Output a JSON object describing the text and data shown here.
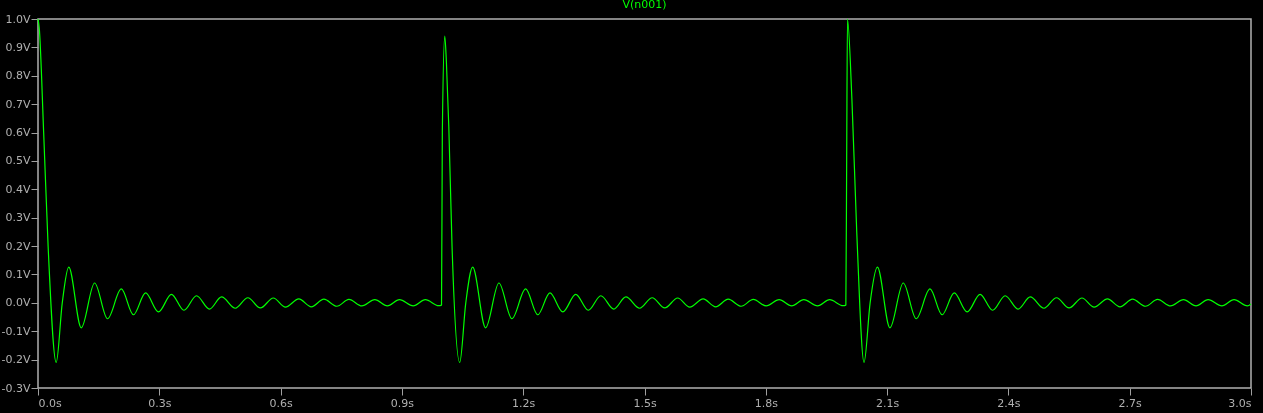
{
  "chart_data": {
    "type": "line",
    "title": "V(n001)",
    "x": [
      0,
      0.003,
      0.014,
      0.025,
      0.045,
      0.06,
      0.076,
      0.107,
      0.14,
      0.172,
      0.206,
      0.236,
      0.266,
      0.298,
      0.33,
      0.361,
      0.392,
      0.424,
      0.454,
      0.488,
      0.519,
      0.55,
      0.582,
      0.612,
      0.645,
      0.676,
      0.707,
      0.739,
      0.769,
      0.801,
      0.833,
      0.864,
      0.894,
      0.928,
      0.958,
      0.991,
      0.998,
      1.0,
      1.006,
      1.01,
      1.016,
      1.024,
      1.043,
      1.058,
      1.075,
      1.107,
      1.14,
      1.172,
      1.206,
      1.236,
      1.266,
      1.298,
      1.33,
      1.361,
      1.392,
      1.424,
      1.454,
      1.488,
      1.519,
      1.55,
      1.582,
      1.612,
      1.645,
      1.676,
      1.707,
      1.739,
      1.769,
      1.801,
      1.833,
      1.864,
      1.894,
      1.928,
      1.958,
      1.991,
      1.998,
      2.0,
      2.002,
      2.013,
      2.025,
      2.043,
      2.058,
      2.076,
      2.107,
      2.14,
      2.172,
      2.206,
      2.236,
      2.266,
      2.298,
      2.33,
      2.361,
      2.392,
      2.424,
      2.454,
      2.488,
      2.519,
      2.55,
      2.582,
      2.612,
      2.645,
      2.676,
      2.707,
      2.739,
      2.769,
      2.801,
      2.833,
      2.864,
      2.894,
      2.928,
      2.958,
      2.991,
      3.0
    ],
    "series": [
      {
        "color": "#00ff00",
        "values": [
          1.0,
          0.97,
          0.6,
          0.2,
          -0.21,
          0,
          0.126,
          -0.088,
          0.07,
          -0.056,
          0.049,
          -0.042,
          0.035,
          -0.032,
          0.03,
          -0.026,
          0.025,
          -0.022,
          0.021,
          -0.019,
          0.018,
          -0.018,
          0.017,
          -0.015,
          0.014,
          -0.014,
          0.013,
          -0.012,
          0.012,
          -0.011,
          0.011,
          -0.011,
          0.011,
          -0.011,
          0.011,
          -0.01,
          -0.008,
          0.6,
          0.94,
          0.85,
          0.62,
          0.2,
          -0.21,
          0,
          0.126,
          -0.088,
          0.07,
          -0.056,
          0.049,
          -0.042,
          0.035,
          -0.032,
          0.03,
          -0.026,
          0.025,
          -0.022,
          0.021,
          -0.019,
          0.018,
          -0.018,
          0.017,
          -0.015,
          0.014,
          -0.014,
          0.013,
          -0.012,
          0.012,
          -0.011,
          0.011,
          -0.011,
          0.011,
          -0.011,
          0.011,
          -0.01,
          -0.008,
          0.5,
          1.0,
          0.716,
          0.247,
          -0.21,
          0,
          0.126,
          -0.088,
          0.07,
          -0.056,
          0.049,
          -0.042,
          0.035,
          -0.032,
          0.03,
          -0.026,
          0.025,
          -0.022,
          0.021,
          -0.019,
          0.018,
          -0.018,
          0.017,
          -0.015,
          0.014,
          -0.014,
          0.013,
          -0.012,
          0.012,
          -0.011,
          0.011,
          -0.011,
          0.011,
          -0.011,
          0.011,
          -0.011,
          -0.004
        ]
      }
    ],
    "xlim": [
      0,
      3
    ],
    "xticks": [
      {
        "value": 0,
        "label": "0.0s"
      },
      {
        "value": 0.3,
        "label": "0.3s"
      },
      {
        "value": 0.6,
        "label": "0.6s"
      },
      {
        "value": 0.9,
        "label": "0.9s"
      },
      {
        "value": 1.2,
        "label": "1.2s"
      },
      {
        "value": 1.5,
        "label": "1.5s"
      },
      {
        "value": 1.8,
        "label": "1.8s"
      },
      {
        "value": 2.1,
        "label": "2.1s"
      },
      {
        "value": 2.4,
        "label": "2.4s"
      },
      {
        "value": 2.7,
        "label": "2.7s"
      },
      {
        "value": 3.0,
        "label": "3.0s"
      }
    ],
    "ylim": [
      -0.3,
      1.0
    ],
    "yticks": [
      {
        "value": -0.3,
        "label": "-0.3V"
      },
      {
        "value": -0.2,
        "label": "-0.2V"
      },
      {
        "value": -0.1,
        "label": "-0.1V"
      },
      {
        "value": 0,
        "label": "0.0V"
      },
      {
        "value": 0.1,
        "label": "0.1V"
      },
      {
        "value": 0.2,
        "label": "0.2V"
      },
      {
        "value": 0.3,
        "label": "0.3V"
      },
      {
        "value": 0.4,
        "label": "0.4V"
      },
      {
        "value": 0.5,
        "label": "0.5V"
      },
      {
        "value": 0.6,
        "label": "0.6V"
      },
      {
        "value": 0.7,
        "label": "0.7V"
      },
      {
        "value": 0.8,
        "label": "0.8V"
      },
      {
        "value": 0.9,
        "label": "0.9V"
      },
      {
        "value": 1.0,
        "label": "1.0V"
      }
    ],
    "grid": false,
    "line_style": "solid"
  }
}
